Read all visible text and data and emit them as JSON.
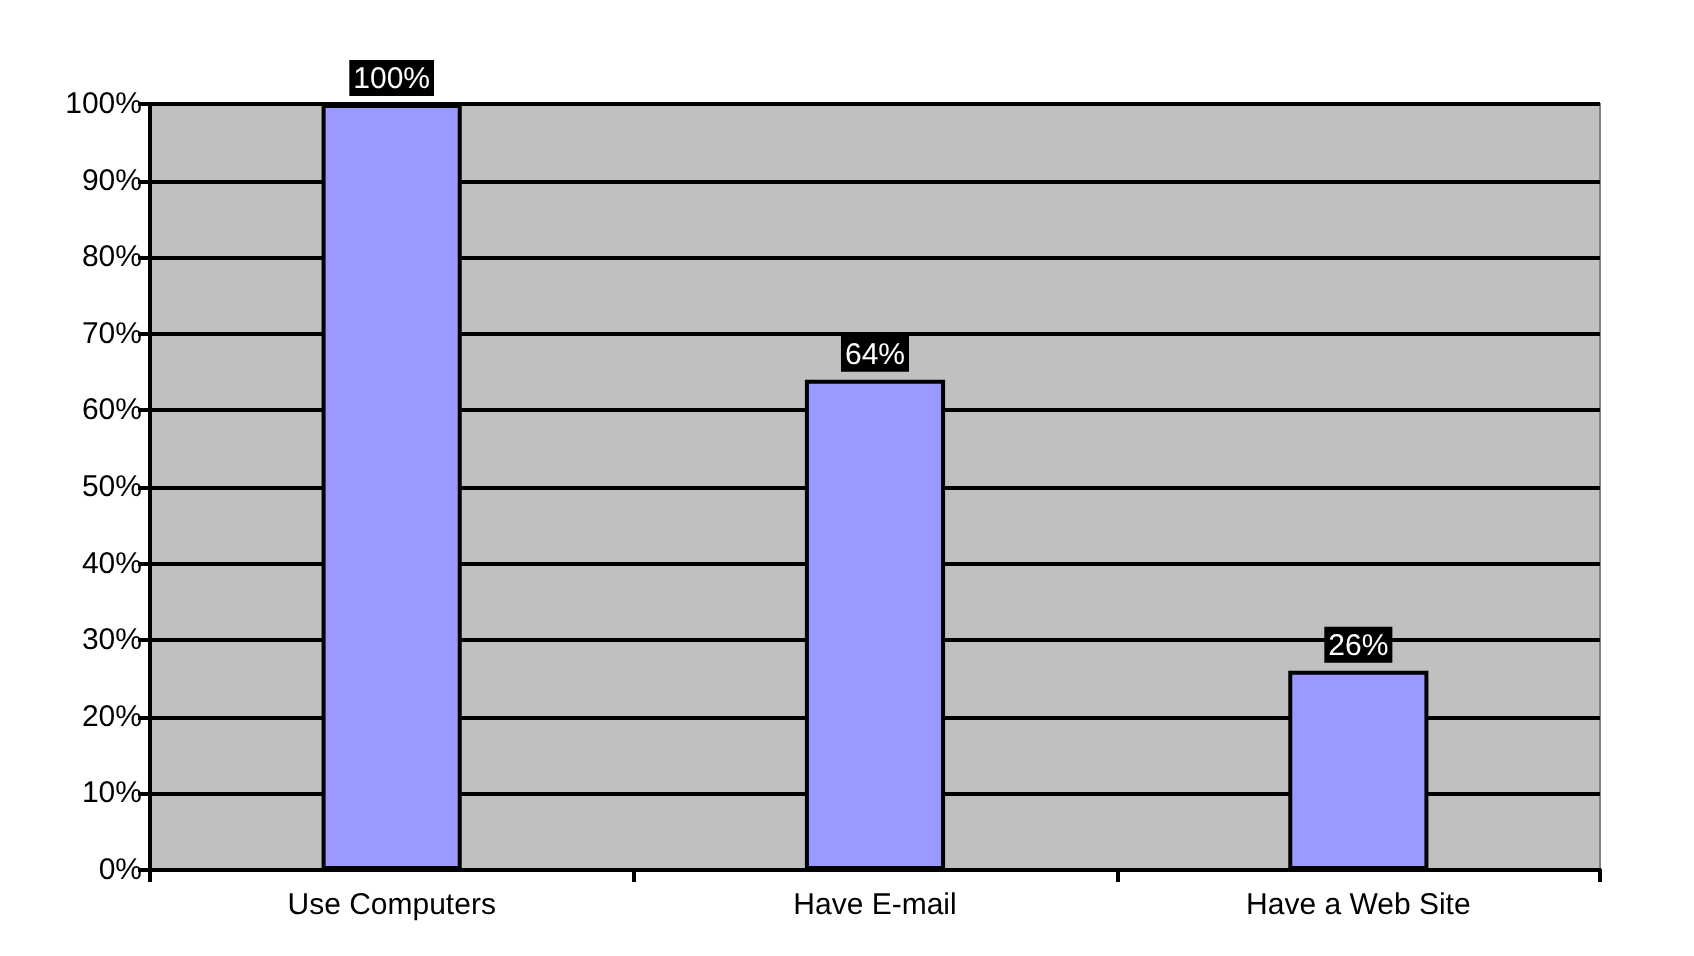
{
  "chart_data": {
    "type": "bar",
    "categories": [
      "Use Computers",
      "Have E-mail",
      "Have a Web Site"
    ],
    "values": [
      100,
      64,
      26
    ],
    "color": "#9999ff",
    "value_labels": [
      "100%",
      "64%",
      "26%"
    ],
    "ylim": [
      0,
      100
    ],
    "yticks": [
      {
        "value": 0,
        "label": "0%"
      },
      {
        "value": 10,
        "label": "10%"
      },
      {
        "value": 20,
        "label": "20%"
      },
      {
        "value": 30,
        "label": "30%"
      },
      {
        "value": 40,
        "label": "40%"
      },
      {
        "value": 50,
        "label": "50%"
      },
      {
        "value": 60,
        "label": "60%"
      },
      {
        "value": 70,
        "label": "70%"
      },
      {
        "value": 80,
        "label": "80%"
      },
      {
        "value": 90,
        "label": "90%"
      },
      {
        "value": 100,
        "label": "100%"
      }
    ],
    "grid": "y"
  }
}
